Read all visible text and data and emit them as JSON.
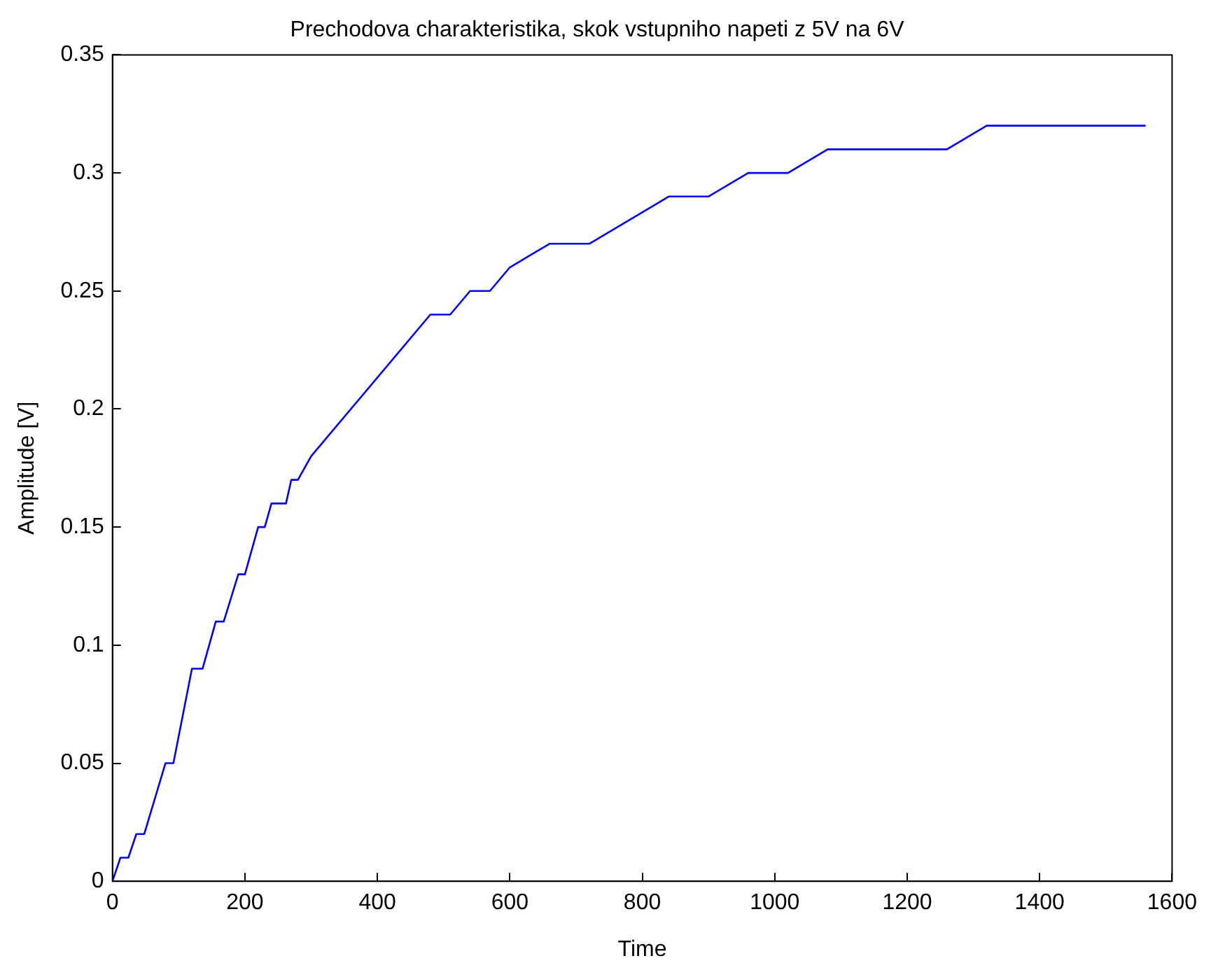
{
  "chart_data": {
    "type": "line",
    "title": "Prechodova charakteristika, skok vstupniho napeti z 5V na 6V",
    "xlabel": "Time",
    "ylabel": "Amplitude [V]",
    "x": [
      0,
      12,
      24,
      36,
      48,
      80,
      92,
      120,
      136,
      156,
      168,
      190,
      200,
      210,
      220,
      230,
      240,
      262,
      270,
      280,
      300,
      480,
      510,
      540,
      570,
      600,
      660,
      720,
      840,
      900,
      960,
      1020,
      1080,
      1260,
      1320,
      1560
    ],
    "series": [
      {
        "color": "#0000ff",
        "values": [
          0,
          0.01,
          0.01,
          0.02,
          0.02,
          0.05,
          0.05,
          0.09,
          0.09,
          0.11,
          0.11,
          0.13,
          0.13,
          0.14,
          0.15,
          0.15,
          0.16,
          0.16,
          0.17,
          0.17,
          0.18,
          0.24,
          0.24,
          0.25,
          0.25,
          0.26,
          0.27,
          0.27,
          0.29,
          0.29,
          0.3,
          0.3,
          0.31,
          0.31,
          0.32,
          0.32
        ]
      }
    ],
    "xlim": [
      0,
      1600
    ],
    "xticks": [
      0,
      200,
      400,
      600,
      800,
      1000,
      1200,
      1400,
      1600
    ],
    "ylim": [
      0,
      0.35
    ],
    "yticks": [
      0,
      0.05,
      0.1,
      0.15,
      0.2,
      0.25,
      0.3,
      0.35
    ],
    "grid": false,
    "legend": false,
    "marker": "none",
    "line_style": "solid"
  }
}
